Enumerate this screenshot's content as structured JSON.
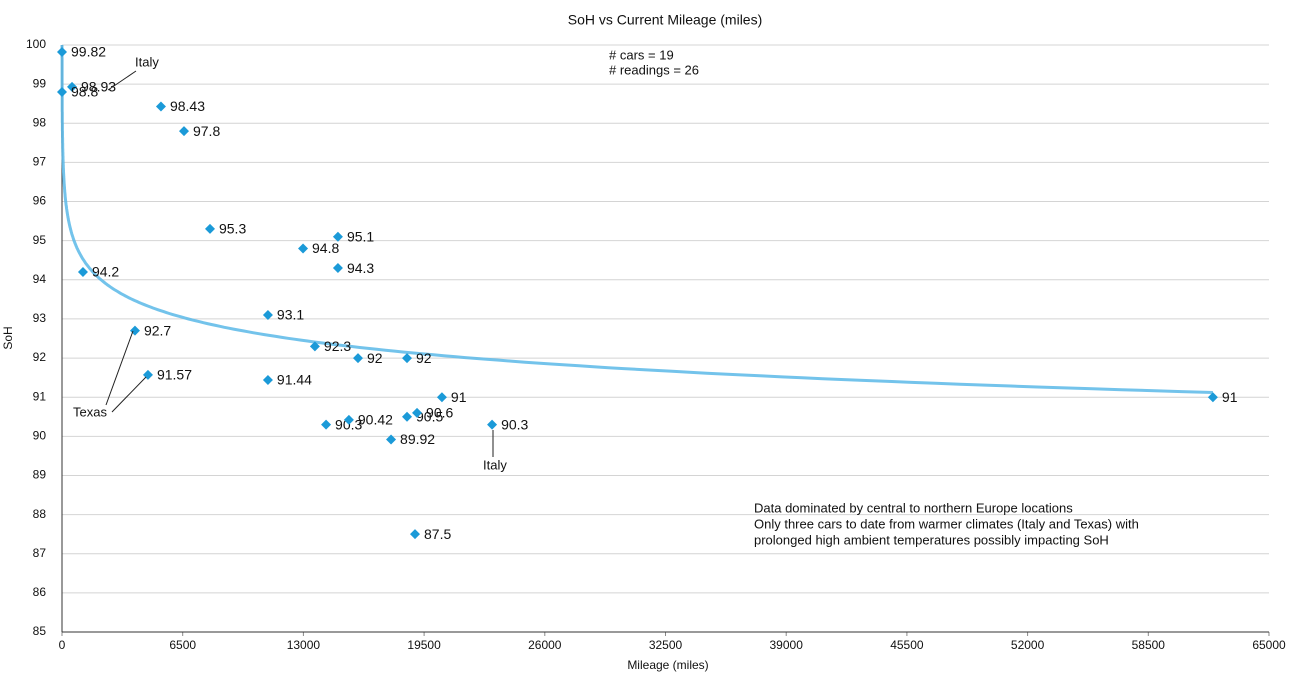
{
  "chart_data": {
    "type": "scatter",
    "title": "SoH vs Current Mileage (miles)",
    "x_label": "Mileage (miles)",
    "y_label": "SoH",
    "x": [
      0,
      540,
      0,
      5330,
      6570,
      7970,
      12980,
      14860,
      14860,
      1130,
      11090,
      3930,
      13620,
      15940,
      18580,
      4630,
      11090,
      20460,
      61980,
      14220,
      15450,
      18580,
      19120,
      23160,
      17720,
      19010
    ],
    "values": [
      99.82,
      98.93,
      98.8,
      98.43,
      97.8,
      95.3,
      94.8,
      95.1,
      94.3,
      94.2,
      93.1,
      92.7,
      92.3,
      92,
      92,
      91.57,
      91.44,
      91,
      91,
      90.3,
      90.42,
      90.5,
      90.6,
      90.3,
      89.92,
      87.5
    ],
    "color": "#1b9ad8",
    "trendline": {
      "type": "logarithmic",
      "color": "#5bb8e8"
    },
    "xlim": [
      0,
      65000
    ],
    "xticks": [
      0,
      6500,
      13000,
      19500,
      26000,
      32500,
      39000,
      45500,
      52000,
      58500,
      65000
    ],
    "ylim": [
      85,
      100
    ],
    "yticks": [
      85,
      86,
      87,
      88,
      89,
      90,
      91,
      92,
      93,
      94,
      95,
      96,
      97,
      98,
      99,
      100
    ],
    "grid": true,
    "annotations": [
      "Italy",
      "Texas",
      "Italy"
    ],
    "stats": [
      "# cars = 19",
      "# readings = 26"
    ],
    "note": [
      "Data dominated by central to northern Europe locations",
      "Only three cars to date from warmer climates (Italy and Texas) with",
      "prolonged high ambient temperatures possibly impacting SoH"
    ]
  }
}
